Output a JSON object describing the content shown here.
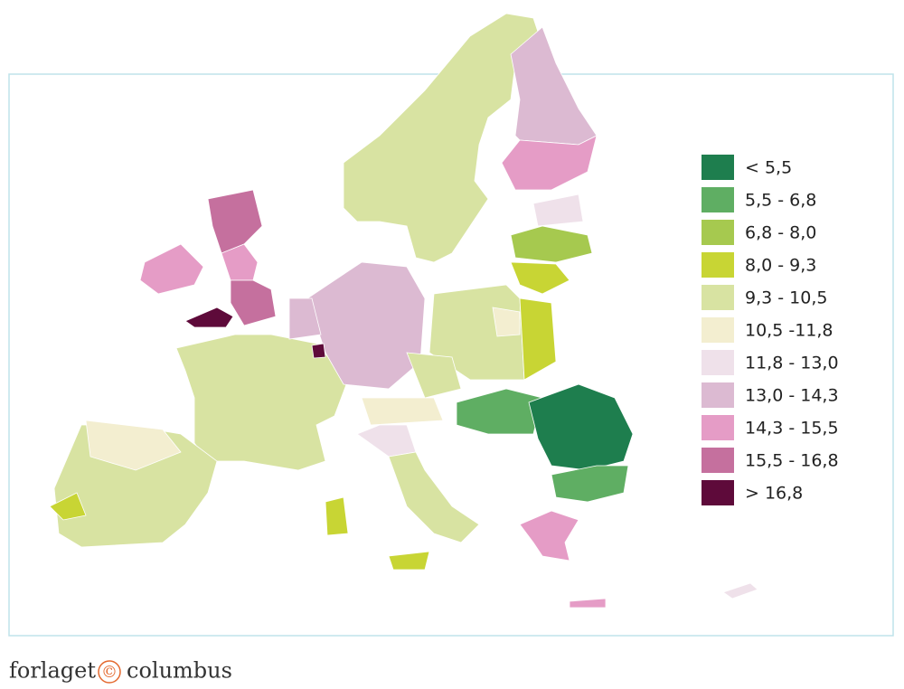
{
  "legend": {
    "items": [
      {
        "label": "< 5,5",
        "color": "#1e7e4e"
      },
      {
        "label": "5,5 - 6,8",
        "color": "#5fae63"
      },
      {
        "label": "6,8 - 8,0",
        "color": "#a6c94f"
      },
      {
        "label": "8,0 - 9,3",
        "color": "#c8d534"
      },
      {
        "label": "9,3 - 10,5",
        "color": "#d8e3a2"
      },
      {
        "label": "10,5 -11,8",
        "color": "#f3eed0"
      },
      {
        "label": "11,8 - 13,0",
        "color": "#efe1ea"
      },
      {
        "label": "13,0 - 14,3",
        "color": "#dcbad2"
      },
      {
        "label": "14,3 - 15,5",
        "color": "#e59cc6"
      },
      {
        "label": "15,5 - 16,8",
        "color": "#c5709e"
      },
      {
        "label": "> 16,8",
        "color": "#5e0a3a"
      }
    ]
  },
  "footer": {
    "brand_left": "forlaget",
    "symbol": "©",
    "brand_right": "columbus"
  }
}
